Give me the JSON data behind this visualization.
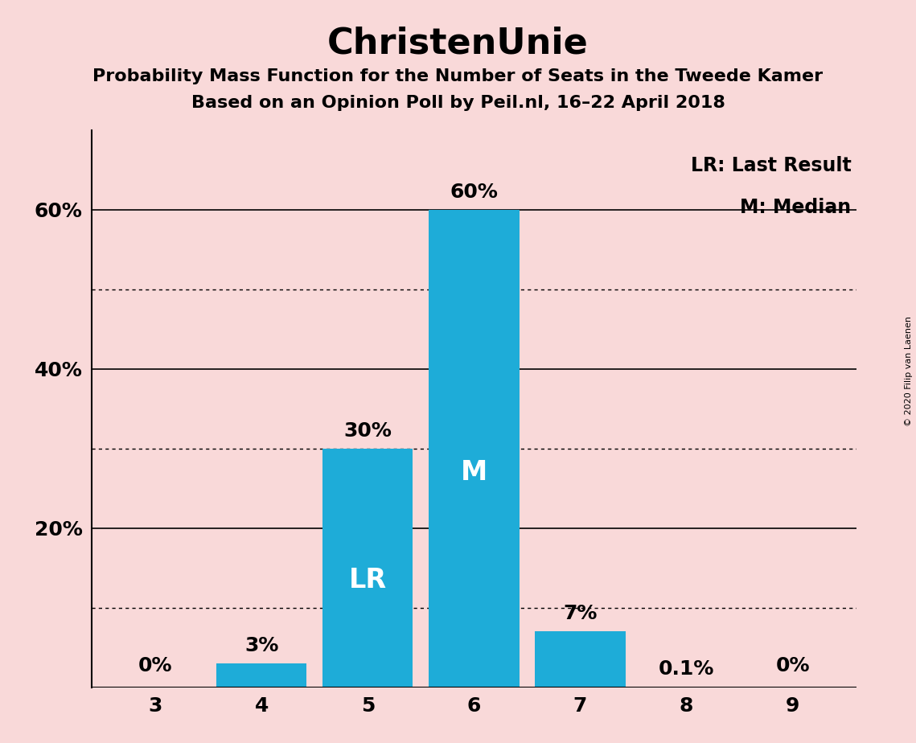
{
  "title": "ChristenUnie",
  "subtitle1": "Probability Mass Function for the Number of Seats in the Tweede Kamer",
  "subtitle2": "Based on an Opinion Poll by Peil.nl, 16–22 April 2018",
  "copyright": "© 2020 Filip van Laenen",
  "seats": [
    3,
    4,
    5,
    6,
    7,
    8,
    9
  ],
  "probabilities": [
    0.0,
    3.0,
    30.0,
    60.0,
    7.0,
    0.1,
    0.0
  ],
  "prob_labels": [
    "0%",
    "3%",
    "30%",
    "60%",
    "7%",
    "0.1%",
    "0%"
  ],
  "bar_color": "#1EACD8",
  "background_color": "#F9D9D9",
  "last_result_seat": 5,
  "median_seat": 6,
  "lr_label": "LR",
  "median_label": "M",
  "legend_lr": "LR: Last Result",
  "legend_m": "M: Median",
  "yticks": [
    0,
    20,
    40,
    60
  ],
  "ytick_labels": [
    "",
    "20%",
    "40%",
    "60%"
  ],
  "ylim": [
    0,
    70
  ],
  "title_fontsize": 32,
  "subtitle_fontsize": 16,
  "axis_tick_fontsize": 18,
  "bar_label_fontsize": 18,
  "inbar_label_fontsize": 24,
  "legend_fontsize": 17,
  "solid_gridlines": [
    20,
    40,
    60
  ],
  "dotted_gridlines": [
    10,
    30,
    50
  ],
  "bar_width": 0.85
}
